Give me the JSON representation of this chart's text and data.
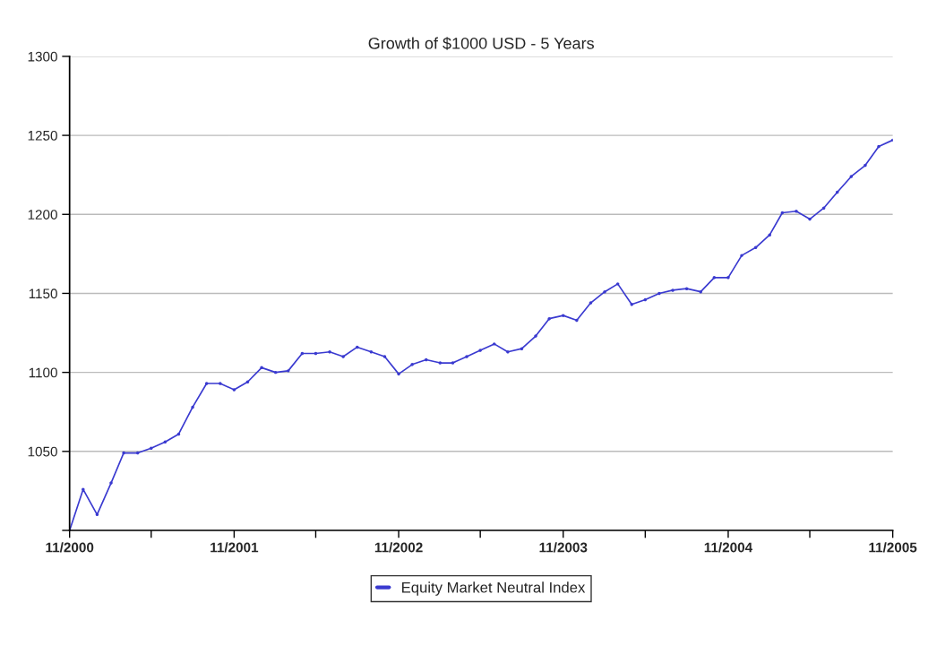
{
  "chart_data": {
    "type": "line",
    "title": "Growth of $1000 USD - 5 Years",
    "x": [
      "2000-11",
      "2000-12",
      "2001-01",
      "2001-02",
      "2001-03",
      "2001-04",
      "2001-05",
      "2001-06",
      "2001-07",
      "2001-08",
      "2001-09",
      "2001-10",
      "2001-11",
      "2001-12",
      "2002-01",
      "2002-02",
      "2002-03",
      "2002-04",
      "2002-05",
      "2002-06",
      "2002-07",
      "2002-08",
      "2002-09",
      "2002-10",
      "2002-11",
      "2002-12",
      "2003-01",
      "2003-02",
      "2003-03",
      "2003-04",
      "2003-05",
      "2003-06",
      "2003-07",
      "2003-08",
      "2003-09",
      "2003-10",
      "2003-11",
      "2003-12",
      "2004-01",
      "2004-02",
      "2004-03",
      "2004-04",
      "2004-05",
      "2004-06",
      "2004-07",
      "2004-08",
      "2004-09",
      "2004-10",
      "2004-11",
      "2004-12",
      "2005-01",
      "2005-02",
      "2005-03",
      "2005-04",
      "2005-05",
      "2005-06",
      "2005-07",
      "2005-08",
      "2005-09",
      "2005-10",
      "2005-11"
    ],
    "series": [
      {
        "name": "Equity Market Neutral Index",
        "color": "#3a3ad0",
        "values": [
          1000,
          1026,
          1010,
          1030,
          1049,
          1049,
          1052,
          1056,
          1061,
          1078,
          1093,
          1093,
          1089,
          1094,
          1103,
          1100,
          1101,
          1112,
          1112,
          1113,
          1110,
          1116,
          1113,
          1110,
          1099,
          1105,
          1108,
          1106,
          1106,
          1110,
          1114,
          1118,
          1113,
          1115,
          1123,
          1134,
          1136,
          1133,
          1144,
          1151,
          1156,
          1143,
          1146,
          1150,
          1152,
          1153,
          1151,
          1160,
          1160,
          1174,
          1179,
          1187,
          1201,
          1202,
          1197,
          1204,
          1214,
          1224,
          1231,
          1243,
          1247
        ]
      }
    ],
    "xlim": [
      "2000-11",
      "2005-11"
    ],
    "xticks": [
      {
        "value": "2000-11",
        "label": "11/2000"
      },
      {
        "value": "2001-05",
        "label": null
      },
      {
        "value": "2001-11",
        "label": "11/2001"
      },
      {
        "value": "2002-05",
        "label": null
      },
      {
        "value": "2002-11",
        "label": "11/2002"
      },
      {
        "value": "2003-05",
        "label": null
      },
      {
        "value": "2003-11",
        "label": "11/2003"
      },
      {
        "value": "2004-05",
        "label": null
      },
      {
        "value": "2004-11",
        "label": "11/2004"
      },
      {
        "value": "2005-05",
        "label": null
      },
      {
        "value": "2005-11",
        "label": "11/2005"
      }
    ],
    "ylim": [
      1000,
      1300
    ],
    "yticks": [
      {
        "value": 1000,
        "label": null
      },
      1050,
      1100,
      1150,
      1200,
      1250,
      1300
    ],
    "grid": "y",
    "legend": "bottom",
    "marker": "circle",
    "line_style": "solid"
  }
}
